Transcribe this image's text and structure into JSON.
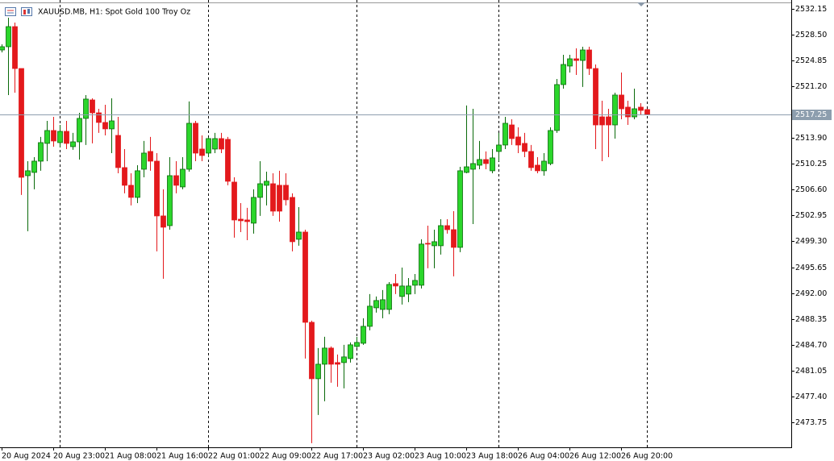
{
  "chart_data": {
    "type": "candlestick",
    "title": "XAUUSD.MB, H1:  Spot Gold 100 Troy Oz",
    "categories": [
      "20 Aug 2024",
      null,
      null,
      null,
      null,
      null,
      null,
      null,
      "20 Aug 23:00",
      null,
      null,
      null,
      null,
      null,
      null,
      null,
      "21 Aug 08:00",
      null,
      null,
      null,
      null,
      null,
      null,
      null,
      "21 Aug 16:00",
      null,
      null,
      null,
      null,
      null,
      null,
      null,
      "22 Aug 01:00",
      null,
      null,
      null,
      null,
      null,
      null,
      null,
      "22 Aug 09:00",
      null,
      null,
      null,
      null,
      null,
      null,
      null,
      "22 Aug 17:00",
      null,
      null,
      null,
      null,
      null,
      null,
      null,
      "23 Aug 02:00",
      null,
      null,
      null,
      null,
      null,
      null,
      null,
      "23 Aug 10:00",
      null,
      null,
      null,
      null,
      null,
      null,
      null,
      "23 Aug 18:00",
      null,
      null,
      null,
      null,
      null,
      null,
      null,
      "26 Aug 04:00",
      null,
      null,
      null,
      null,
      null,
      null,
      null,
      "26 Aug 12:00",
      null,
      null,
      null,
      null,
      null,
      null,
      null,
      "26 Aug 20:00",
      null,
      null,
      null,
      null
    ],
    "open": [
      2526.34,
      2526.8,
      2529.64,
      2523.72,
      2508.58,
      2509.04,
      2510.63,
      2513.14,
      2514.96,
      2513.25,
      2514.84,
      2512.68,
      2513.36,
      2516.67,
      2519.28,
      2517.46,
      2516.1,
      2515.19,
      2514.27,
      2509.72,
      2507.22,
      2505.51,
      2509.49,
      2512.0,
      2510.63,
      2502.89,
      2501.52,
      2508.58,
      2506.99,
      2509.49,
      2515.98,
      2512.34,
      2511.77,
      2512.34,
      2513.82,
      2513.71,
      2507.67,
      2502.43,
      2502.32,
      2501.87,
      2505.51,
      2507.22,
      2507.44,
      2507.22,
      2507.22,
      2505.51,
      2499.59,
      2500.61,
      2487.86,
      2479.89,
      2481.94,
      2484.22,
      2482.17,
      2482.17,
      2482.74,
      2484.45,
      2484.9,
      2487.29,
      2489.91,
      2489.68,
      2489.68,
      2493.33,
      2491.51,
      2491.85,
      2493.1,
      2493.1,
      2499.02,
      2498.68,
      2498.68,
      2501.52,
      2500.95,
      2498.45,
      2509.04,
      2509.49,
      2510.06,
      2510.86,
      2509.27,
      2512.0,
      2512.91,
      2515.75,
      2514.05,
      2513.14,
      2512.0,
      2510.06,
      2509.27,
      2510.29,
      2514.96,
      2521.45,
      2524.07,
      2525.09,
      2524.86,
      2526.34,
      2523.72,
      2516.89,
      2516.89,
      2515.75,
      2519.97,
      2518.26,
      2516.89,
      2518.26,
      2517.92
    ],
    "high": [
      2527.14,
      2530.9,
      2530.21,
      2523.72,
      2510.63,
      2511.2,
      2514.05,
      2516.32,
      2516.89,
      2515.75,
      2516.32,
      2514.62,
      2517.46,
      2519.97,
      2519.51,
      2518.03,
      2518.6,
      2519.51,
      2516.89,
      2512.34,
      2508.92,
      2510.06,
      2513.48,
      2514.05,
      2511.77,
      2506.65,
      2511.2,
      2510.63,
      2511.2,
      2519.06,
      2516.32,
      2514.27,
      2514.05,
      2514.62,
      2514.62,
      2514.05,
      2508.35,
      2504.71,
      2504.03,
      2506.65,
      2510.63,
      2509.15,
      2508.92,
      2509.27,
      2508.92,
      2506.08,
      2504.14,
      2500.95,
      2488.09,
      2484.22,
      2485.81,
      2484.45,
      2483.31,
      2484.68,
      2485.02,
      2485.81,
      2488.43,
      2491.85,
      2491.51,
      2492.42,
      2493.55,
      2494.69,
      2495.6,
      2494.12,
      2494.69,
      2499.59,
      2501.52,
      2500.95,
      2502.43,
      2502.43,
      2503.57,
      2509.83,
      2518.49,
      2518.03,
      2513.48,
      2512.0,
      2512.34,
      2514.62,
      2516.89,
      2516.55,
      2515.41,
      2514.62,
      2512.91,
      2511.2,
      2511.77,
      2515.41,
      2522.24,
      2525.66,
      2525.66,
      2526.57,
      2526.8,
      2526.8,
      2524.29,
      2519.17,
      2518.03,
      2520.31,
      2523.15,
      2519.17,
      2520.88,
      2518.83,
      2518.03
    ],
    "low": [
      2526.0,
      2519.97,
      2520.31,
      2505.85,
      2500.73,
      2506.65,
      2509.27,
      2510.63,
      2512.68,
      2512.57,
      2512.34,
      2512.23,
      2510.86,
      2512.91,
      2513.14,
      2514.62,
      2514.27,
      2511.77,
      2508.92,
      2506.08,
      2504.37,
      2504.71,
      2508.35,
      2509.27,
      2497.88,
      2494.01,
      2500.95,
      2506.08,
      2506.65,
      2509.15,
      2510.63,
      2510.63,
      2511.2,
      2511.77,
      2511.77,
      2507.22,
      2499.82,
      2500.61,
      2499.47,
      2500.39,
      2502.89,
      2504.37,
      2502.89,
      2502.09,
      2504.37,
      2497.88,
      2498.68,
      2482.74,
      2470.79,
      2474.77,
      2476.71,
      2479.32,
      2478.76,
      2478.53,
      2482.17,
      2484.22,
      2484.68,
      2486.72,
      2489.23,
      2488.43,
      2489.0,
      2491.85,
      2490.37,
      2490.71,
      2491.85,
      2492.64,
      2495.49,
      2495.49,
      2497.43,
      2500.39,
      2494.35,
      2497.77,
      2508.92,
      2501.75,
      2509.49,
      2509.49,
      2508.92,
      2510.63,
      2512.34,
      2512.91,
      2511.77,
      2511.2,
      2509.27,
      2508.92,
      2508.58,
      2510.06,
      2514.62,
      2520.88,
      2523.15,
      2522.81,
      2521.11,
      2522.81,
      2512.34,
      2510.63,
      2511.2,
      2513.82,
      2516.55,
      2515.75,
      2516.55,
      2517.23,
      2517.23
    ],
    "close": [
      2526.8,
      2529.64,
      2523.72,
      2508.35,
      2509.27,
      2510.63,
      2513.25,
      2514.96,
      2513.48,
      2514.84,
      2513.14,
      2513.36,
      2516.67,
      2519.4,
      2517.46,
      2516.1,
      2515.19,
      2516.32,
      2509.72,
      2507.22,
      2505.51,
      2509.27,
      2511.77,
      2510.63,
      2502.89,
      2501.3,
      2508.58,
      2507.22,
      2509.49,
      2515.98,
      2511.77,
      2511.43,
      2513.82,
      2513.82,
      2512.34,
      2507.79,
      2502.32,
      2502.21,
      2502.09,
      2505.51,
      2507.44,
      2507.79,
      2503.57,
      2503.57,
      2505.17,
      2499.25,
      2500.61,
      2487.86,
      2479.89,
      2481.94,
      2484.22,
      2481.94,
      2481.94,
      2482.97,
      2484.68,
      2485.02,
      2487.29,
      2490.14,
      2490.94,
      2491.05,
      2493.21,
      2492.99,
      2492.99,
      2492.99,
      2493.78,
      2498.91,
      2498.91,
      2499.25,
      2501.52,
      2500.95,
      2498.45,
      2509.27,
      2509.83,
      2510.29,
      2510.86,
      2510.29,
      2511.09,
      2512.91,
      2515.98,
      2513.82,
      2512.91,
      2512.0,
      2509.72,
      2509.27,
      2510.63,
      2514.96,
      2521.45,
      2524.29,
      2525.09,
      2524.86,
      2526.34,
      2523.72,
      2515.75,
      2515.75,
      2515.75,
      2519.97,
      2518.03,
      2516.89,
      2518.03,
      2517.8,
      2517.25
    ],
    "up_color": "#2bd62b",
    "down_color": "#e3191c",
    "ylim": [
      2470.2,
      2533.4
    ],
    "yticks": [
      2532.15,
      {
        "value": 2528.5,
        "label": "2528.50"
      },
      2524.85,
      {
        "value": 2521.2,
        "label": "2521.20"
      },
      {
        "value": 2513.9,
        "label": "2513.90"
      },
      2510.25,
      {
        "value": 2506.6,
        "label": "2506.60"
      },
      2502.95,
      {
        "value": 2499.3,
        "label": "2499.30"
      },
      2495.65,
      {
        "value": 2492,
        "label": "2492.00"
      },
      2488.35,
      {
        "value": 2484.7,
        "label": "2484.70"
      },
      2481.05,
      {
        "value": 2477.4,
        "label": "2477.40"
      },
      2473.75
    ],
    "current_price": {
      "value": 2517.25,
      "label": "2517.25"
    },
    "grid": false
  }
}
